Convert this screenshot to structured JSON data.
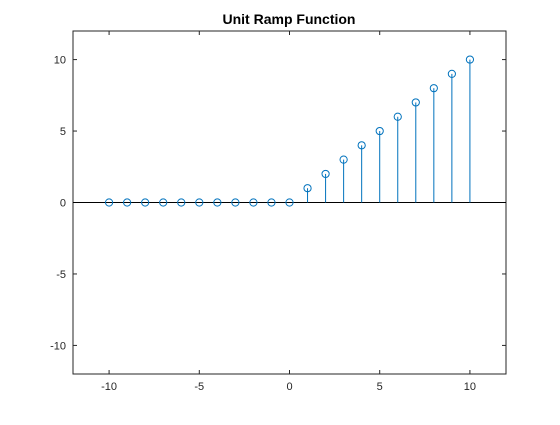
{
  "chart_data": {
    "type": "stem",
    "title": "Unit Ramp Function",
    "xlabel": "",
    "ylabel": "",
    "xlim": [
      -12,
      12
    ],
    "ylim": [
      -12,
      12
    ],
    "xticks": [
      -10,
      -5,
      0,
      5,
      10
    ],
    "yticks": [
      -10,
      -5,
      0,
      5,
      10
    ],
    "x": [
      -10,
      -9,
      -8,
      -7,
      -6,
      -5,
      -4,
      -3,
      -2,
      -1,
      0,
      1,
      2,
      3,
      4,
      5,
      6,
      7,
      8,
      9,
      10
    ],
    "y": [
      0,
      0,
      0,
      0,
      0,
      0,
      0,
      0,
      0,
      0,
      0,
      1,
      2,
      3,
      4,
      5,
      6,
      7,
      8,
      9,
      10
    ],
    "baseline": 0,
    "marker": "circle",
    "color": "#0072BD",
    "grid": false,
    "box": true
  }
}
